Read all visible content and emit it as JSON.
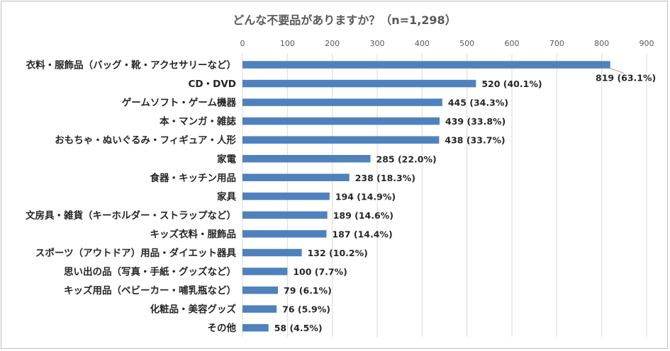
{
  "chart_data": {
    "type": "bar",
    "orientation": "horizontal",
    "title": "どんな不要品がありますか？（n=1,298）",
    "xlim": [
      0,
      900
    ],
    "xticks": [
      0,
      100,
      200,
      300,
      400,
      500,
      600,
      700,
      800,
      900
    ],
    "axis_position": "top",
    "grid": true,
    "bar_color": "#4f81bd",
    "categories": [
      "衣料・服飾品（バッグ・靴・アクセサリーなど）",
      "CD・DVD",
      "ゲームソフト・ゲーム機器",
      "本・マンガ・雑誌",
      "おもちゃ・ぬいぐるみ・フィギュア・人形",
      "家電",
      "食器・キッチン用品",
      "家具",
      "文房具・雑貨（キーホルダー・ストラップなど）",
      "キッズ衣料・服飾品",
      "スポーツ（アウトドア）用品・ダイエット器具",
      "思い出の品（写真・手紙・グッズなど）",
      "キッズ用品（ベビーカー・哺乳瓶など）",
      "化粧品・美容グッズ",
      "その他"
    ],
    "values": [
      819,
      520,
      445,
      439,
      438,
      285,
      238,
      194,
      189,
      187,
      132,
      100,
      79,
      76,
      58
    ],
    "data_labels": [
      "819 (63.1%)",
      "520 (40.1%)",
      "445 (34.3%)",
      "439 (33.8%)",
      "438 (33.7%)",
      "285 (22.0%)",
      "238 (18.3%)",
      "194 (14.9%)",
      "189 (14.6%)",
      "187 (14.4%)",
      "132 (10.2%)",
      "100 (7.7%)",
      "79 (6.1%)",
      "76 (5.9%)",
      "58 (4.5%)"
    ]
  }
}
